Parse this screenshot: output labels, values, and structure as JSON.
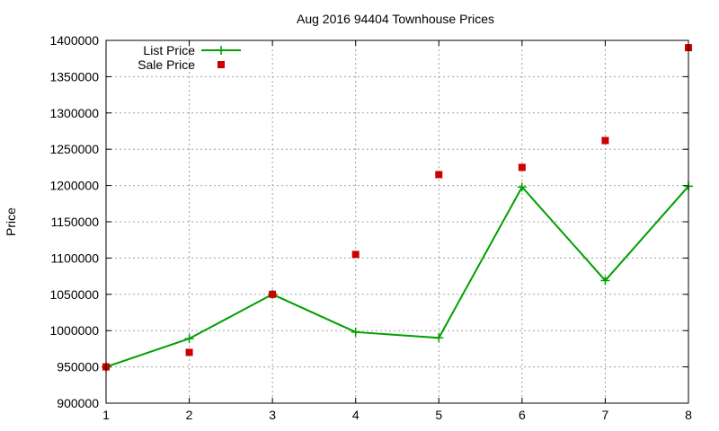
{
  "chart_data": {
    "type": "line",
    "title": "Aug 2016 94404 Townhouse Prices",
    "xlabel": "",
    "ylabel": "Price",
    "xlim": [
      1,
      8
    ],
    "ylim": [
      900000,
      1400000
    ],
    "x_ticks": [
      1,
      2,
      3,
      4,
      5,
      6,
      7,
      8
    ],
    "y_ticks": [
      900000,
      950000,
      1000000,
      1050000,
      1100000,
      1150000,
      1200000,
      1250000,
      1300000,
      1350000,
      1400000
    ],
    "grid": true,
    "legend_position": "top-left",
    "series": [
      {
        "name": "List Price",
        "style": "line-with-plus-markers",
        "color": "#00a000",
        "x": [
          1,
          2,
          3,
          4,
          5,
          6,
          7,
          8
        ],
        "values": [
          950000,
          989000,
          1050000,
          998000,
          990000,
          1198000,
          1069000,
          1199000
        ]
      },
      {
        "name": "Sale Price",
        "style": "square-markers",
        "color": "#cc0000",
        "x": [
          1,
          2,
          3,
          4,
          5,
          6,
          7,
          8
        ],
        "values": [
          950000,
          970000,
          1050000,
          1105000,
          1215000,
          1225000,
          1262000,
          1390000
        ]
      }
    ]
  }
}
